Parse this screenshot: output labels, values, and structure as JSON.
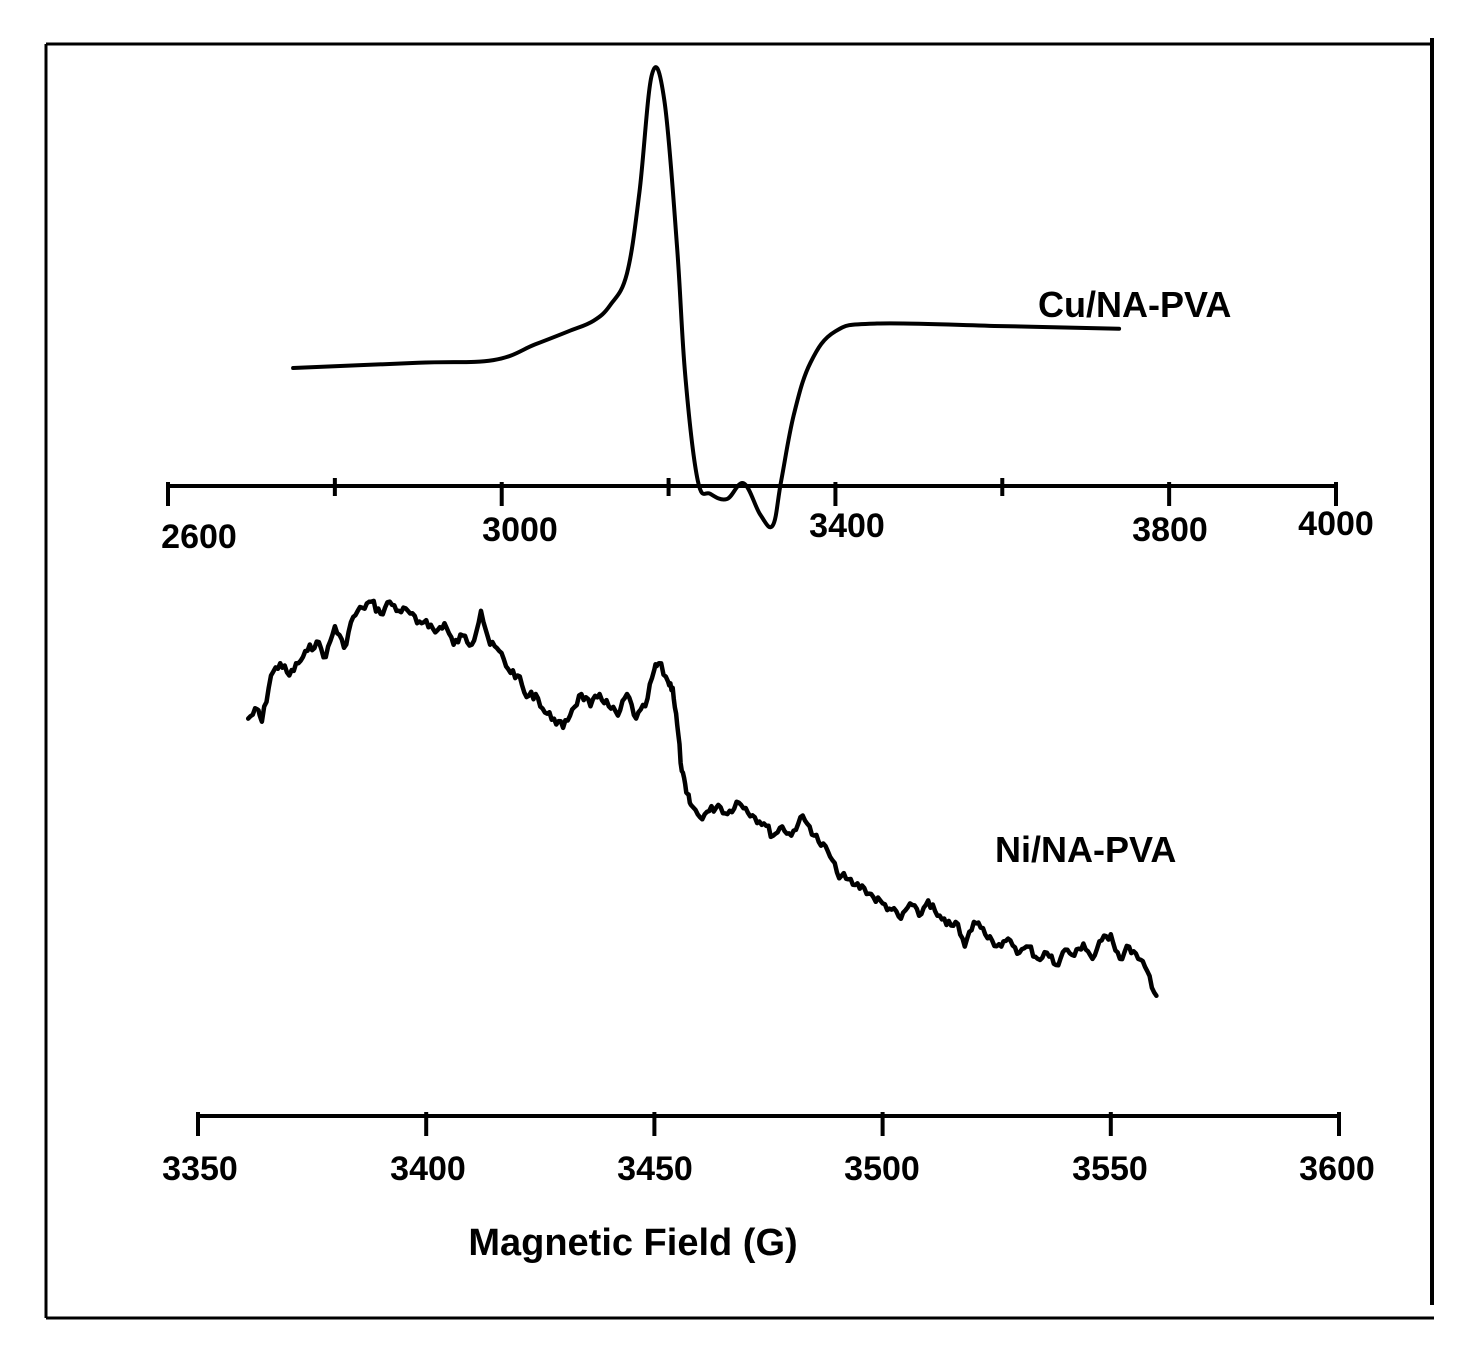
{
  "chart_data": [
    {
      "type": "line",
      "series_name": "Cu/NA-PVA",
      "xlim": [
        2600,
        4000
      ],
      "major_ticks": [
        2600,
        3000,
        3400,
        3800,
        4000
      ],
      "minor_ticks": [
        2800,
        3200,
        3600
      ],
      "tick_labels": [
        "2600",
        "3000",
        "3400",
        "3800",
        "4000"
      ],
      "x": [
        2750,
        2900,
        2990,
        3040,
        3080,
        3110,
        3130,
        3150,
        3165,
        3180,
        3195,
        3210,
        3220,
        3235,
        3250,
        3270,
        3290,
        3310,
        3325,
        3335,
        3350,
        3370,
        3400,
        3450,
        3600,
        3740
      ],
      "y": [
        -0.12,
        -0.1,
        -0.09,
        -0.03,
        0.02,
        0.06,
        0.12,
        0.24,
        0.55,
        1.0,
        0.9,
        0.35,
        -0.15,
        -0.55,
        -0.6,
        -0.62,
        -0.56,
        -0.68,
        -0.72,
        -0.55,
        -0.3,
        -0.1,
        0.02,
        0.05,
        0.04,
        0.03
      ]
    },
    {
      "type": "line",
      "series_name": "Ni/NA-PVA",
      "xlim": [
        3350,
        3600
      ],
      "major_ticks": [
        3350,
        3400,
        3450,
        3500,
        3550,
        3600
      ],
      "tick_labels": [
        "3350",
        "3400",
        "3450",
        "3500",
        "3550",
        "3600"
      ],
      "xlabel": "Magnetic Field (G)",
      "x": [
        3361,
        3363,
        3364,
        3366,
        3368,
        3370,
        3372,
        3374,
        3376,
        3378,
        3380,
        3382,
        3384,
        3386,
        3388,
        3390,
        3392,
        3394,
        3396,
        3398,
        3400,
        3402,
        3404,
        3406,
        3408,
        3410,
        3412,
        3414,
        3416,
        3418,
        3420,
        3422,
        3424,
        3426,
        3428,
        3430,
        3432,
        3434,
        3436,
        3438,
        3440,
        3442,
        3444,
        3446,
        3448,
        3450,
        3451,
        3453,
        3454,
        3455,
        3456,
        3457,
        3458,
        3460,
        3462,
        3464,
        3466,
        3468,
        3470,
        3472,
        3474,
        3476,
        3478,
        3480,
        3482,
        3484,
        3486,
        3488,
        3490,
        3492,
        3494,
        3496,
        3498,
        3500,
        3502,
        3504,
        3506,
        3508,
        3510,
        3512,
        3514,
        3516,
        3518,
        3520,
        3522,
        3524,
        3526,
        3528,
        3530,
        3532,
        3534,
        3536,
        3538,
        3540,
        3542,
        3544,
        3546,
        3548,
        3550,
        3552,
        3554,
        3556,
        3558,
        3560
      ],
      "y": [
        0.62,
        0.65,
        0.61,
        0.76,
        0.8,
        0.76,
        0.8,
        0.84,
        0.87,
        0.82,
        0.92,
        0.85,
        0.95,
        0.98,
        1.0,
        0.96,
        1.0,
        0.97,
        0.97,
        0.93,
        0.94,
        0.9,
        0.93,
        0.86,
        0.89,
        0.86,
        0.97,
        0.86,
        0.84,
        0.78,
        0.76,
        0.69,
        0.7,
        0.64,
        0.62,
        0.59,
        0.65,
        0.7,
        0.66,
        0.7,
        0.66,
        0.63,
        0.7,
        0.62,
        0.66,
        0.78,
        0.8,
        0.74,
        0.72,
        0.6,
        0.45,
        0.38,
        0.34,
        0.3,
        0.32,
        0.34,
        0.31,
        0.35,
        0.33,
        0.3,
        0.28,
        0.24,
        0.27,
        0.24,
        0.3,
        0.27,
        0.22,
        0.19,
        0.12,
        0.1,
        0.08,
        0.07,
        0.04,
        0.02,
        0.0,
        -0.03,
        0.02,
        -0.02,
        0.03,
        -0.02,
        -0.05,
        -0.04,
        -0.12,
        -0.04,
        -0.06,
        -0.1,
        -0.12,
        -0.1,
        -0.14,
        -0.12,
        -0.16,
        -0.14,
        -0.18,
        -0.13,
        -0.15,
        -0.11,
        -0.16,
        -0.1,
        -0.08,
        -0.16,
        -0.12,
        -0.16,
        -0.2,
        -0.28
      ]
    }
  ]
}
